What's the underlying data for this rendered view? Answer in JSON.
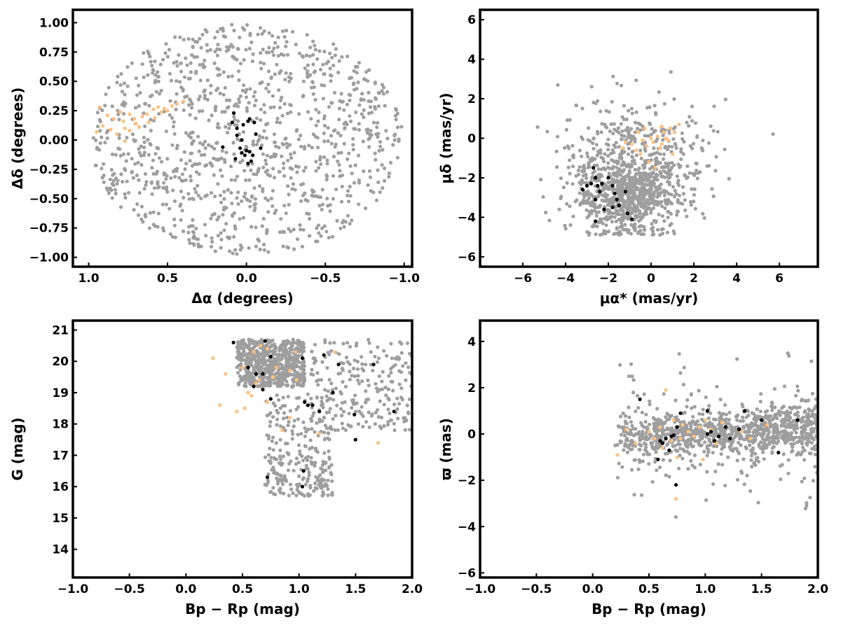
{
  "colors": {
    "field": "#9e9e9e",
    "highlight_orange": "#ffc080",
    "highlight_black": "#000000",
    "axes": "#000000",
    "background": "#ffffff"
  },
  "chart_data": [
    {
      "type": "scatter",
      "xlabel": "Δα (degrees)",
      "ylabel": "Δδ (degrees)",
      "xlim": [
        1.1,
        -1.05
      ],
      "ylim": [
        -1.08,
        1.11
      ],
      "xticks": [
        1.0,
        0.5,
        0.0,
        -0.5,
        -1.0
      ],
      "xtick_labels": [
        "1.0",
        "0.5",
        "0.0",
        "−0.5",
        "−1.0"
      ],
      "yticks": [
        1.0,
        0.75,
        0.5,
        0.25,
        0.0,
        -0.25,
        -0.5,
        -0.75,
        -1.0
      ],
      "ytick_labels": [
        "1.00",
        "0.75",
        "0.50",
        "0.25",
        "0.00",
        "−0.25",
        "−0.50",
        "−0.75",
        "−1.00"
      ],
      "grid": false,
      "legend": "none",
      "series": [
        {
          "color_key": "field",
          "description": "field stars, roughly uniform in a disk of radius 1 degree",
          "approx_count": 1100
        },
        {
          "color_key": "highlight_orange",
          "points": [
            [
              0.93,
              0.28
            ],
            [
              0.88,
              0.21
            ],
            [
              0.84,
              0.18
            ],
            [
              0.8,
              0.24
            ],
            [
              0.78,
              0.16
            ],
            [
              0.77,
              0.1
            ],
            [
              0.74,
              0.22
            ],
            [
              0.71,
              0.18
            ],
            [
              0.7,
              0.14
            ],
            [
              0.66,
              0.2
            ],
            [
              0.63,
              0.22
            ],
            [
              0.62,
              0.15
            ],
            [
              0.59,
              0.26
            ],
            [
              0.56,
              0.28
            ],
            [
              0.54,
              0.24
            ],
            [
              0.52,
              0.27
            ],
            [
              0.5,
              0.25
            ],
            [
              0.47,
              0.29
            ],
            [
              0.44,
              0.31
            ],
            [
              0.4,
              0.33
            ],
            [
              0.82,
              0.05
            ],
            [
              0.77,
              -0.01
            ],
            [
              0.74,
              0.08
            ],
            [
              0.91,
              0.12
            ],
            [
              0.86,
              0.09
            ],
            [
              0.68,
              0.11
            ],
            [
              0.58,
              0.19
            ],
            [
              0.95,
              0.07
            ]
          ]
        },
        {
          "color_key": "highlight_black",
          "points": [
            [
              0.08,
              0.23
            ],
            [
              0.09,
              0.15
            ],
            [
              0.02,
              0.13
            ],
            [
              -0.01,
              0.16
            ],
            [
              -0.05,
              0.15
            ],
            [
              0.06,
              0.04
            ],
            [
              -0.06,
              0.05
            ],
            [
              0.0,
              -0.09
            ],
            [
              0.04,
              -0.07
            ],
            [
              -0.02,
              -0.1
            ],
            [
              0.07,
              -0.16
            ],
            [
              -0.03,
              -0.18
            ],
            [
              -0.09,
              -0.07
            ],
            [
              0.15,
              -0.06
            ],
            [
              -0.01,
              -0.2
            ],
            [
              0.03,
              0.0
            ],
            [
              0.06,
              0.1
            ],
            [
              -0.04,
              -0.13
            ],
            [
              0.01,
              -0.13
            ],
            [
              0.03,
              -0.11
            ],
            [
              -0.02,
              0.18
            ]
          ]
        }
      ]
    },
    {
      "type": "scatter",
      "xlabel": "μα* (mas/yr)",
      "ylabel": "μδ (mas/yr)",
      "xlim": [
        -8.0,
        7.8
      ],
      "ylim": [
        -6.5,
        6.5
      ],
      "xticks": [
        -6,
        -4,
        -2,
        0,
        2,
        4,
        6
      ],
      "xtick_labels": [
        "−6",
        "−4",
        "−2",
        "0",
        "2",
        "4",
        "6"
      ],
      "yticks": [
        6,
        4,
        2,
        0,
        -2,
        -4,
        -6
      ],
      "ytick_labels": [
        "6",
        "4",
        "2",
        "0",
        "−2",
        "−4",
        "−6"
      ],
      "grid": false,
      "legend": "none",
      "series": [
        {
          "color_key": "field",
          "description": "field stars, broad cloud concentrated near (-1, -3) with tail toward (0, 0)",
          "approx_count": 1100
        },
        {
          "color_key": "highlight_orange",
          "points": [
            [
              -0.6,
              0.3
            ],
            [
              -0.4,
              -0.1
            ],
            [
              -0.2,
              -0.4
            ],
            [
              0.1,
              -0.2
            ],
            [
              0.3,
              0.1
            ],
            [
              0.5,
              -0.3
            ],
            [
              0.6,
              0.3
            ],
            [
              0.7,
              0.0
            ],
            [
              0.8,
              -0.1
            ],
            [
              0.9,
              0.5
            ],
            [
              1.1,
              0.3
            ],
            [
              1.3,
              0.7
            ],
            [
              -0.9,
              -0.3
            ],
            [
              -0.7,
              -0.6
            ],
            [
              -0.5,
              -0.8
            ],
            [
              -1.2,
              -0.2
            ],
            [
              -1.3,
              -0.5
            ],
            [
              0.2,
              -1.5
            ],
            [
              -0.1,
              -1.2
            ],
            [
              0.4,
              -0.5
            ],
            [
              0.0,
              0.0
            ],
            [
              -0.3,
              0.5
            ],
            [
              1.0,
              -0.8
            ],
            [
              0.5,
              0.6
            ]
          ]
        },
        {
          "color_key": "highlight_black",
          "points": [
            [
              -2.7,
              -1.5
            ],
            [
              -2.6,
              -2.0
            ],
            [
              -2.5,
              -2.4
            ],
            [
              -2.4,
              -2.7
            ],
            [
              -2.8,
              -2.3
            ],
            [
              -3.0,
              -2.4
            ],
            [
              -3.2,
              -2.6
            ],
            [
              -2.3,
              -2.3
            ],
            [
              -2.6,
              -3.1
            ],
            [
              -2.0,
              -2.0
            ],
            [
              -1.8,
              -2.4
            ],
            [
              -1.7,
              -2.8
            ],
            [
              -1.6,
              -3.1
            ],
            [
              -1.5,
              -3.4
            ],
            [
              -1.8,
              -3.5
            ],
            [
              -2.2,
              -3.6
            ],
            [
              -2.6,
              -4.2
            ],
            [
              -1.1,
              -3.8
            ],
            [
              -1.2,
              -2.7
            ],
            [
              -0.9,
              -4.1
            ]
          ]
        }
      ]
    },
    {
      "type": "scatter",
      "xlabel": "Bp − Rp (mag)",
      "ylabel": "G (mag)",
      "xlim": [
        -1.0,
        2.0
      ],
      "ylim": [
        13.1,
        21.3
      ],
      "y_inverted": false,
      "xticks": [
        -1.0,
        -0.5,
        0.0,
        0.5,
        1.0,
        1.5,
        2.0
      ],
      "xtick_labels": [
        "−1.0",
        "−0.5",
        "0.0",
        "0.5",
        "1.0",
        "1.5",
        "2.0"
      ],
      "yticks": [
        21,
        20,
        19,
        18,
        17,
        16,
        15,
        14
      ],
      "ytick_labels": [
        "21",
        "20",
        "19",
        "18",
        "17",
        "16",
        "15",
        "14"
      ],
      "grid": false,
      "legend": "none",
      "series": [
        {
          "color_key": "field",
          "description": "field stars between color 0.2 and 2.0, mostly G 17-20.8",
          "approx_count": 1100
        },
        {
          "color_key": "highlight_orange",
          "points": [
            [
              0.24,
              20.1
            ],
            [
              0.35,
              19.6
            ],
            [
              0.45,
              18.4
            ],
            [
              0.3,
              18.6
            ],
            [
              0.52,
              18.5
            ],
            [
              0.58,
              18.9
            ],
            [
              0.62,
              19.3
            ],
            [
              0.65,
              19.4
            ],
            [
              0.68,
              19.1
            ],
            [
              0.72,
              18.7
            ],
            [
              0.55,
              19.0
            ],
            [
              0.6,
              20.3
            ],
            [
              0.66,
              20.5
            ],
            [
              0.72,
              20.4
            ],
            [
              0.8,
              19.8
            ],
            [
              0.92,
              19.7
            ],
            [
              0.98,
              19.4
            ],
            [
              0.85,
              17.8
            ],
            [
              0.92,
              18.2
            ],
            [
              1.18,
              17.7
            ],
            [
              1.32,
              20.3
            ],
            [
              1.7,
              17.4
            ],
            [
              0.5,
              19.8
            ],
            [
              0.77,
              19.5
            ],
            [
              0.97,
              20.3
            ]
          ]
        },
        {
          "color_key": "highlight_black",
          "points": [
            [
              0.42,
              20.6
            ],
            [
              0.55,
              19.8
            ],
            [
              0.62,
              19.6
            ],
            [
              0.68,
              19.6
            ],
            [
              0.7,
              20.65
            ],
            [
              0.75,
              20.15
            ],
            [
              0.6,
              19.2
            ],
            [
              0.68,
              19.1
            ],
            [
              0.75,
              18.8
            ],
            [
              0.72,
              16.3
            ],
            [
              1.03,
              20.1
            ],
            [
              1.22,
              20.2
            ],
            [
              1.35,
              19.9
            ],
            [
              1.66,
              19.9
            ],
            [
              1.05,
              18.7
            ],
            [
              1.08,
              18.6
            ],
            [
              1.12,
              18.6
            ],
            [
              1.18,
              18.4
            ],
            [
              1.3,
              19.0
            ],
            [
              1.49,
              18.3
            ],
            [
              1.5,
              17.5
            ],
            [
              1.84,
              18.4
            ],
            [
              1.04,
              16.5
            ],
            [
              1.03,
              16.0
            ]
          ]
        }
      ]
    },
    {
      "type": "scatter",
      "xlabel": "Bp − Rp (mag)",
      "ylabel": "ϖ (mas)",
      "xlim": [
        -1.0,
        2.0
      ],
      "ylim": [
        -6.2,
        4.9
      ],
      "xticks": [
        -1.0,
        -0.5,
        0.0,
        0.5,
        1.0,
        1.5,
        2.0
      ],
      "xtick_labels": [
        "−1.0",
        "−0.5",
        "0.0",
        "0.5",
        "1.0",
        "1.5",
        "2.0"
      ],
      "yticks": [
        4,
        2,
        0,
        -2,
        -4,
        -6
      ],
      "ytick_labels": [
        "4",
        "2",
        "0",
        "−2",
        "−4",
        "−6"
      ],
      "grid": false,
      "legend": "none",
      "series": [
        {
          "color_key": "field",
          "description": "field stars concentrated near parallax 0 for color 0.2-2.0",
          "approx_count": 1100
        },
        {
          "color_key": "highlight_orange",
          "points": [
            [
              0.22,
              -0.9
            ],
            [
              0.3,
              0.2
            ],
            [
              0.38,
              -0.4
            ],
            [
              0.5,
              0.1
            ],
            [
              0.55,
              -0.2
            ],
            [
              0.6,
              0.3
            ],
            [
              0.62,
              -0.6
            ],
            [
              0.65,
              1.9
            ],
            [
              0.7,
              -0.3
            ],
            [
              0.72,
              0.6
            ],
            [
              0.75,
              -1.0
            ],
            [
              0.78,
              -0.2
            ],
            [
              0.8,
              0.4
            ],
            [
              0.85,
              0.1
            ],
            [
              0.9,
              -0.1
            ],
            [
              0.95,
              0.3
            ],
            [
              0.98,
              -1.1
            ],
            [
              1.0,
              0.6
            ],
            [
              1.05,
              0.2
            ],
            [
              1.1,
              -0.4
            ],
            [
              1.15,
              0.5
            ],
            [
              0.74,
              -2.8
            ],
            [
              1.32,
              0.1
            ],
            [
              1.55,
              0.4
            ],
            [
              1.4,
              -0.2
            ]
          ]
        },
        {
          "color_key": "highlight_black",
          "points": [
            [
              0.42,
              1.5
            ],
            [
              0.58,
              -1.1
            ],
            [
              0.62,
              -0.4
            ],
            [
              0.65,
              -0.2
            ],
            [
              0.68,
              -0.7
            ],
            [
              0.7,
              -0.1
            ],
            [
              0.72,
              -0.05
            ],
            [
              0.75,
              0.3
            ],
            [
              0.74,
              -2.2
            ],
            [
              0.78,
              0.9
            ],
            [
              1.02,
              0.0
            ],
            [
              1.05,
              0.1
            ],
            [
              1.08,
              -0.3
            ],
            [
              1.12,
              -0.1
            ],
            [
              1.18,
              0.3
            ],
            [
              1.22,
              -0.2
            ],
            [
              1.3,
              0.2
            ],
            [
              1.35,
              1.0
            ],
            [
              1.5,
              0.6
            ],
            [
              1.65,
              -0.8
            ],
            [
              1.82,
              0.6
            ],
            [
              1.02,
              1.0
            ],
            [
              0.6,
              -0.3
            ]
          ]
        }
      ]
    }
  ]
}
